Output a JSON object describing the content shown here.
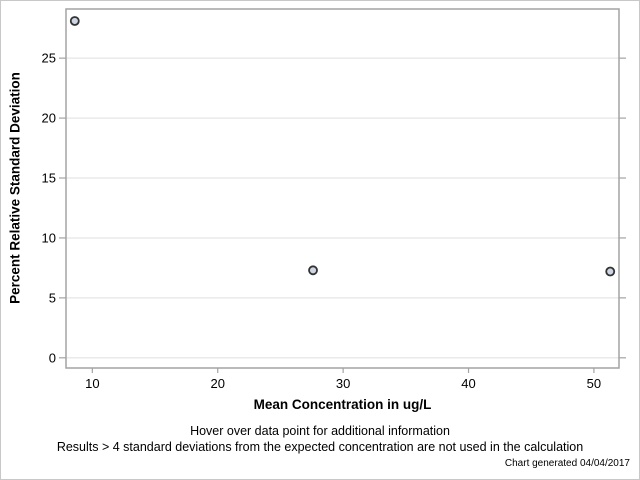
{
  "chart_data": {
    "type": "scatter",
    "title": "",
    "xlabel": "Mean Concentration in ug/L",
    "ylabel": "Percent Relative Standard Deviation",
    "x_ticks": [
      10,
      20,
      30,
      40,
      50
    ],
    "y_ticks": [
      0,
      5,
      10,
      15,
      20,
      25
    ],
    "xlim": [
      7.9,
      52.0
    ],
    "ylim": [
      -0.85,
      29.1
    ],
    "grid": "horizontal",
    "legend": "none",
    "points": [
      {
        "x": 8.6,
        "y": 28.1
      },
      {
        "x": 27.6,
        "y": 7.3
      },
      {
        "x": 51.3,
        "y": 7.2
      }
    ],
    "marker": {
      "shape": "circle",
      "fill": "#cdd6e2",
      "stroke": "#333333"
    }
  },
  "footer": {
    "line1": "Hover over data point for additional information",
    "line2": "Results > 4 standard deviations from the expected concentration are not used in the calculation",
    "generated": "Chart generated 04/04/2017"
  },
  "colors": {
    "frame_border": "#c8c8c8",
    "plot_border": "#a3a3a3",
    "gridline": "#eaeaea",
    "tick": "#a3a3a3",
    "text": "#000000",
    "marker_fill": "#cdd6e2",
    "marker_stroke": "#333333"
  }
}
